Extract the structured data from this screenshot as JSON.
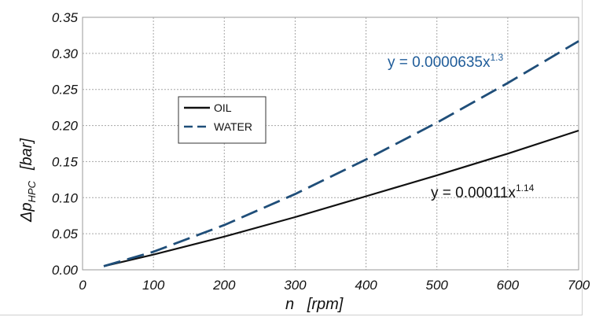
{
  "chart_data": {
    "type": "line",
    "xlabel": "n   [rpm]",
    "ylabel": {
      "prefix": "Δp",
      "subscript": "HPC",
      "unit": "[bar]"
    },
    "xlim": [
      0,
      700
    ],
    "ylim": [
      0,
      0.35
    ],
    "x_ticks": [
      "0",
      "100",
      "200",
      "300",
      "400",
      "500",
      "600",
      "700"
    ],
    "y_ticks": [
      "0.00",
      "0.05",
      "0.10",
      "0.15",
      "0.20",
      "0.25",
      "0.30",
      "0.35"
    ],
    "grid": true,
    "legend_position": "upper-left",
    "series": [
      {
        "name": "OIL",
        "color": "#111111",
        "style": "solid",
        "x": [
          30,
          100,
          200,
          300,
          400,
          500,
          600,
          700
        ],
        "y": [
          0.005,
          0.021,
          0.046,
          0.073,
          0.102,
          0.131,
          0.161,
          0.193
        ]
      },
      {
        "name": "WATER",
        "color": "#1f4e79",
        "style": "dashed",
        "x": [
          30,
          100,
          200,
          300,
          400,
          500,
          600,
          700
        ],
        "y": [
          0.005,
          0.025,
          0.062,
          0.105,
          0.153,
          0.204,
          0.259,
          0.317
        ]
      }
    ],
    "annotations": [
      {
        "series": "WATER",
        "base": "y = 0.0000635x",
        "exp": "1.3",
        "color": "#1f5c99"
      },
      {
        "series": "OIL",
        "base": "y = 0.00011x",
        "exp": "1.14",
        "color": "#111111"
      }
    ]
  }
}
